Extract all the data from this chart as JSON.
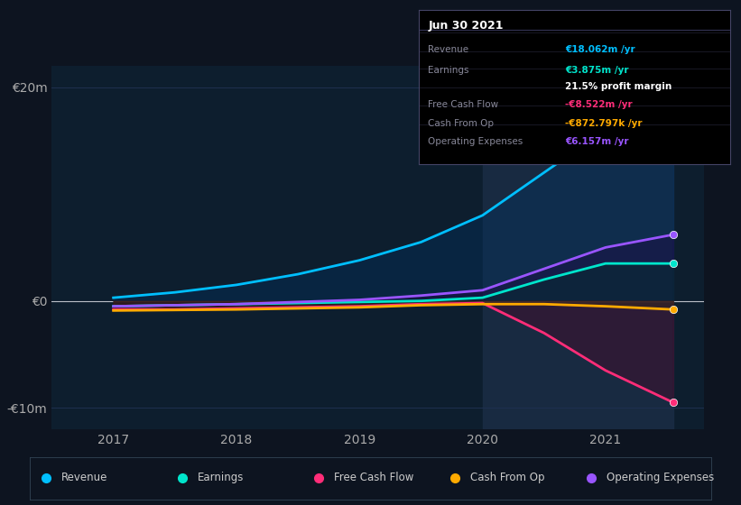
{
  "background_color": "#0d1420",
  "plot_bg_color": "#0d1e2e",
  "grid_color": "#1e3050",
  "highlight_color": "#1a2d45",
  "title_panel": "Jun 30 2021",
  "x_min": 2016.5,
  "x_max": 2021.8,
  "y_min": -12,
  "y_max": 22,
  "yticks": [
    -10,
    0,
    20
  ],
  "ytick_labels": [
    "-€10m",
    "€0",
    "€20m"
  ],
  "xticks": [
    2017,
    2018,
    2019,
    2020,
    2021
  ],
  "highlight_xstart": 2020.0,
  "highlight_xend": 2021.55,
  "years": [
    2017.0,
    2017.5,
    2018.0,
    2018.5,
    2019.0,
    2019.5,
    2020.0,
    2020.5,
    2021.0,
    2021.55
  ],
  "revenue": [
    0.3,
    0.8,
    1.5,
    2.5,
    3.8,
    5.5,
    8.0,
    12.0,
    16.0,
    18.5
  ],
  "earnings": [
    -0.5,
    -0.4,
    -0.3,
    -0.2,
    -0.1,
    0.0,
    0.3,
    2.0,
    3.5,
    3.5
  ],
  "free_cash_flow": [
    -0.8,
    -0.8,
    -0.7,
    -0.6,
    -0.5,
    -0.3,
    -0.2,
    -3.0,
    -6.5,
    -9.5
  ],
  "cash_from_op": [
    -0.9,
    -0.85,
    -0.8,
    -0.7,
    -0.6,
    -0.4,
    -0.3,
    -0.3,
    -0.5,
    -0.8
  ],
  "operating_expenses": [
    -0.5,
    -0.4,
    -0.3,
    -0.1,
    0.1,
    0.5,
    1.0,
    3.0,
    5.0,
    6.2
  ],
  "line_colors": {
    "revenue": "#00bfff",
    "earnings": "#00e5cc",
    "free_cash_flow": "#ff2d78",
    "cash_from_op": "#ffaa00",
    "operating_expenses": "#9955ff"
  },
  "fill_colors": {
    "revenue": "#003366",
    "earnings": "#003322",
    "free_cash_flow": "#550022",
    "cash_from_op": "#443300",
    "operating_expenses": "#220044"
  },
  "legend_items": [
    {
      "label": "Revenue",
      "color": "#00bfff"
    },
    {
      "label": "Earnings",
      "color": "#00e5cc"
    },
    {
      "label": "Free Cash Flow",
      "color": "#ff2d78"
    },
    {
      "label": "Cash From Op",
      "color": "#ffaa00"
    },
    {
      "label": "Operating Expenses",
      "color": "#9955ff"
    }
  ],
  "panel_rows": [
    {
      "label": "Revenue",
      "value": "€18.062m /yr",
      "label_color": "#888899",
      "value_color": "#00bfff"
    },
    {
      "label": "Earnings",
      "value": "€3.875m /yr",
      "label_color": "#888899",
      "value_color": "#00e5cc"
    },
    {
      "label": "",
      "value": "21.5% profit margin",
      "label_color": "#888899",
      "value_color": "#ffffff"
    },
    {
      "label": "Free Cash Flow",
      "value": "-€8.522m /yr",
      "label_color": "#888899",
      "value_color": "#ff2d78"
    },
    {
      "label": "Cash From Op",
      "value": "-€872.797k /yr",
      "label_color": "#888899",
      "value_color": "#ffaa00"
    },
    {
      "label": "Operating Expenses",
      "value": "€6.157m /yr",
      "label_color": "#888899",
      "value_color": "#9955ff"
    }
  ]
}
